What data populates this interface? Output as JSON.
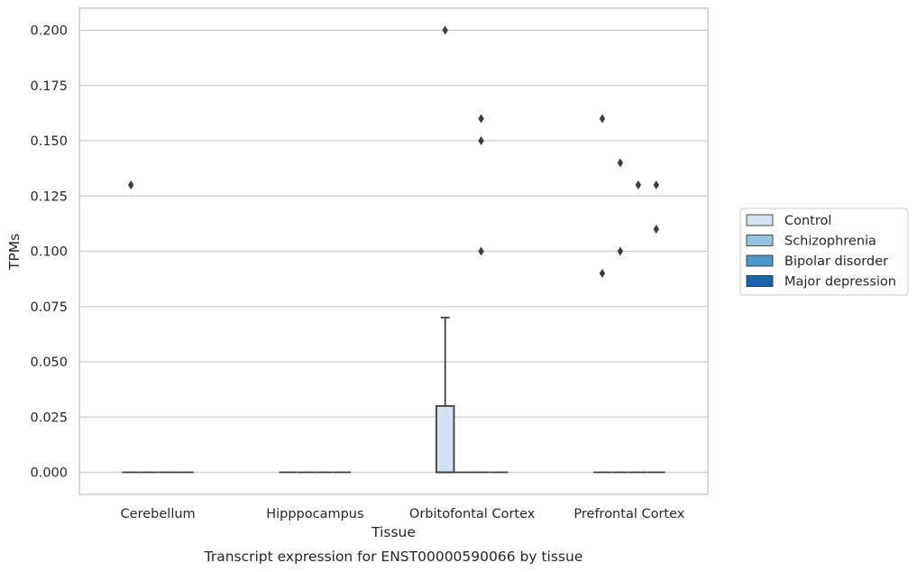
{
  "chart_data": {
    "type": "box",
    "title": "Transcript expression for ENST00000590066 by tissue",
    "xlabel": "Tissue",
    "ylabel": "TPMs",
    "categories": [
      "Cerebellum",
      "Hipppocampus",
      "Orbitofontal Cortex",
      "Prefrontal Cortex"
    ],
    "ylim": [
      -0.01,
      0.21
    ],
    "yticks": [
      "0.000",
      "0.025",
      "0.050",
      "0.075",
      "0.100",
      "0.125",
      "0.150",
      "0.175",
      "0.200"
    ],
    "grid": "horizontal",
    "legend_position": "right",
    "series": [
      {
        "name": "Control",
        "color": "#d0e1f2",
        "boxes": [
          {
            "category": "Cerebellum",
            "q1": 0,
            "median": 0,
            "q3": 0,
            "whisker_low": 0,
            "whisker_high": 0,
            "outliers": [
              0.13
            ]
          },
          {
            "category": "Hipppocampus",
            "q1": 0,
            "median": 0,
            "q3": 0,
            "whisker_low": 0,
            "whisker_high": 0,
            "outliers": []
          },
          {
            "category": "Orbitofontal Cortex",
            "q1": 0,
            "median": 0,
            "q3": 0.03,
            "whisker_low": 0,
            "whisker_high": 0.07,
            "outliers": [
              0.2
            ]
          },
          {
            "category": "Prefrontal Cortex",
            "q1": 0,
            "median": 0,
            "q3": 0,
            "whisker_low": 0,
            "whisker_high": 0,
            "outliers": [
              0.16,
              0.09
            ]
          }
        ]
      },
      {
        "name": "Schizophrenia",
        "color": "#94c4df",
        "boxes": [
          {
            "category": "Cerebellum",
            "q1": 0,
            "median": 0,
            "q3": 0,
            "whisker_low": 0,
            "whisker_high": 0,
            "outliers": []
          },
          {
            "category": "Hipppocampus",
            "q1": 0,
            "median": 0,
            "q3": 0,
            "whisker_low": 0,
            "whisker_high": 0,
            "outliers": []
          },
          {
            "category": "Orbitofontal Cortex",
            "q1": 0,
            "median": 0,
            "q3": 0,
            "whisker_low": 0,
            "whisker_high": 0,
            "outliers": []
          },
          {
            "category": "Prefrontal Cortex",
            "q1": 0,
            "median": 0,
            "q3": 0,
            "whisker_low": 0,
            "whisker_high": 0,
            "outliers": [
              0.14,
              0.1
            ]
          }
        ]
      },
      {
        "name": "Bipolar disorder",
        "color": "#4a98c9",
        "boxes": [
          {
            "category": "Cerebellum",
            "q1": 0,
            "median": 0,
            "q3": 0,
            "whisker_low": 0,
            "whisker_high": 0,
            "outliers": []
          },
          {
            "category": "Hipppocampus",
            "q1": 0,
            "median": 0,
            "q3": 0,
            "whisker_low": 0,
            "whisker_high": 0,
            "outliers": []
          },
          {
            "category": "Orbitofontal Cortex",
            "q1": 0,
            "median": 0,
            "q3": 0,
            "whisker_low": 0,
            "whisker_high": 0,
            "outliers": [
              0.16,
              0.15,
              0.1
            ]
          },
          {
            "category": "Prefrontal Cortex",
            "q1": 0,
            "median": 0,
            "q3": 0,
            "whisker_low": 0,
            "whisker_high": 0,
            "outliers": [
              0.13
            ]
          }
        ]
      },
      {
        "name": "Major depression",
        "color": "#1764ab",
        "boxes": [
          {
            "category": "Cerebellum",
            "q1": 0,
            "median": 0,
            "q3": 0,
            "whisker_low": 0,
            "whisker_high": 0,
            "outliers": []
          },
          {
            "category": "Hipppocampus",
            "q1": 0,
            "median": 0,
            "q3": 0,
            "whisker_low": 0,
            "whisker_high": 0,
            "outliers": []
          },
          {
            "category": "Orbitofontal Cortex",
            "q1": 0,
            "median": 0,
            "q3": 0,
            "whisker_low": 0,
            "whisker_high": 0,
            "outliers": []
          },
          {
            "category": "Prefrontal Cortex",
            "q1": 0,
            "median": 0,
            "q3": 0,
            "whisker_low": 0,
            "whisker_high": 0,
            "outliers": [
              0.13,
              0.11
            ]
          }
        ]
      }
    ]
  }
}
